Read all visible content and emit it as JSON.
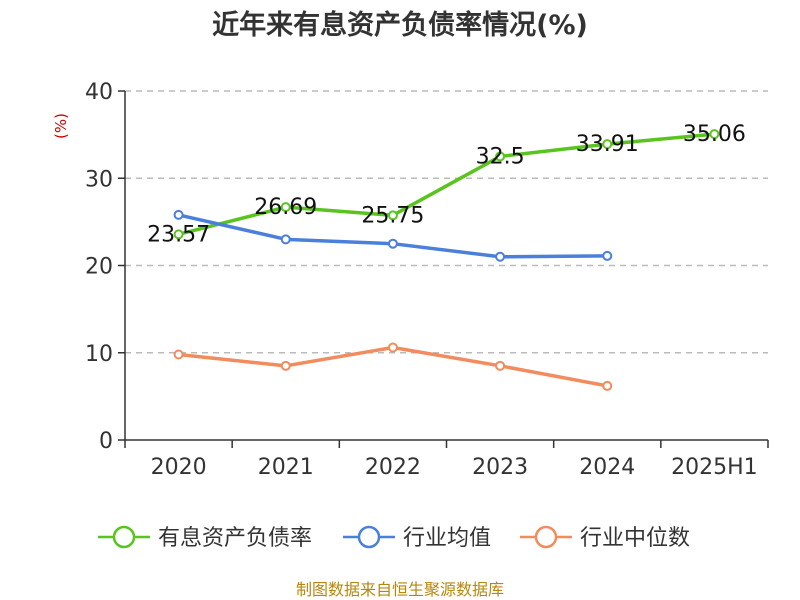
{
  "chart_data": {
    "type": "line",
    "title": "近年来有息资产负债率情况(%)",
    "ylabel": "(%)",
    "xlabel": "",
    "categories": [
      "2020",
      "2021",
      "2022",
      "2023",
      "2024",
      "2025H1"
    ],
    "ylim": [
      0,
      40
    ],
    "yticks": [
      0,
      10,
      20,
      30,
      40
    ],
    "grid": true,
    "legend_position": "bottom",
    "series": [
      {
        "name": "有息资产负债率",
        "color": "#5ac41f",
        "values": [
          23.57,
          26.69,
          25.75,
          32.5,
          33.91,
          35.06
        ],
        "show_labels": true
      },
      {
        "name": "行业均值",
        "color": "#4a7fdc",
        "values": [
          25.8,
          23.0,
          22.5,
          21.0,
          21.1,
          null
        ],
        "show_labels": false
      },
      {
        "name": "行业中位数",
        "color": "#f28b5e",
        "values": [
          9.8,
          8.5,
          10.6,
          8.5,
          6.2,
          null
        ],
        "show_labels": false
      }
    ],
    "source": "制图数据来自恒生聚源数据库"
  }
}
